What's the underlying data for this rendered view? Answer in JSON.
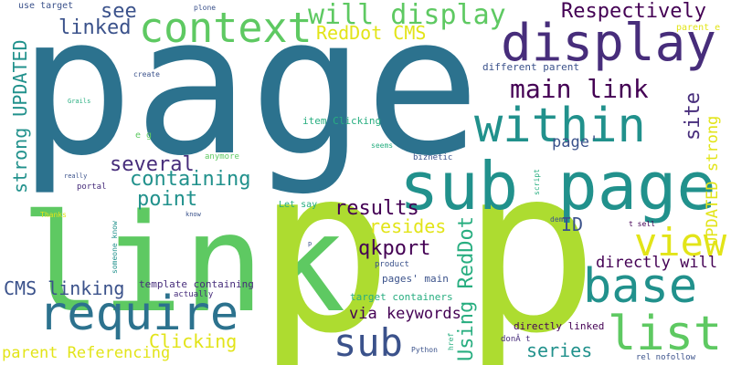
{
  "words": {
    "page": "page",
    "link": "link",
    "p1": "p",
    "p2": "p",
    "sub_page": "sub page",
    "display": "display",
    "context": "context",
    "within": "within",
    "require": "require",
    "base": "base",
    "list": "list",
    "view": "view",
    "sub": "sub",
    "will_display": "will display",
    "main_link": "main link",
    "respectively": "Respectively",
    "see": "see",
    "linked": "linked",
    "redot_cms": "RedDot CMS",
    "containing": "containing",
    "several": "several",
    "point": "point",
    "results": "results",
    "resides": "resides",
    "qkport": "qkport",
    "directly_will": "directly will",
    "cms_linking": "CMS linking",
    "via_keywords": "via keywords",
    "clicking": "Clicking",
    "series": "series",
    "parent_referencing": "parent Referencing",
    "site": "site",
    "page_quote": "page'",
    "id": "ID",
    "using_reddot": "Using RedDot",
    "strong_updated_left": "strong UPDATED",
    "updated_strong_right": "UPDATED strong",
    "use_target": "use target",
    "plone": "plone",
    "parent_e": "parent e",
    "different_parent": "different parent",
    "create": "create",
    "grails": "Grails",
    "item_clicking": "item Clicking",
    "e_g": "e g",
    "anymore": "anymore",
    "seems": "seems",
    "biznetic": "biznetic",
    "really": "really",
    "portal": "portal",
    "let_say": "Let say",
    "script": "script",
    "thanks": "Thanks",
    "know": "know",
    "someone_know": "someone know",
    "demo": "demo",
    "t_sell": "t sell",
    "p_small": "p",
    "product": "product",
    "template_containing": "template containing",
    "actually": "actually",
    "pages_main": "pages' main",
    "target_containers": "target containers",
    "href": "href",
    "directly_linked": "directly linked",
    "don_t": "donÂ t",
    "python": "Python",
    "rel_nofollow": "rel nofollow"
  }
}
